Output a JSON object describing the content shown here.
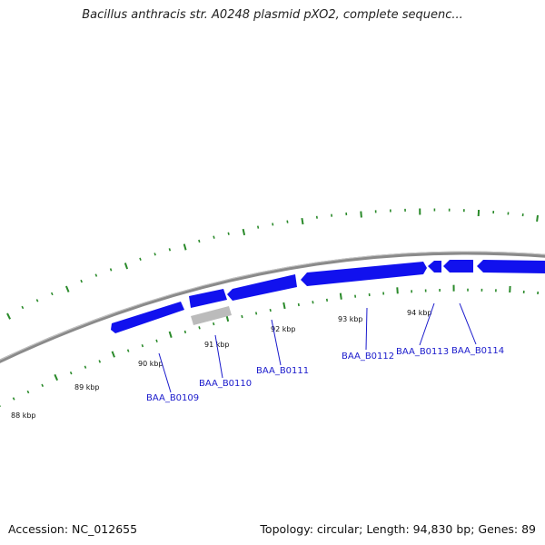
{
  "title": "Bacillus anthracis str. A0248 plasmid pXO2, complete sequenc...",
  "accession": "Accession: NC_012655",
  "summary": "Topology: circular; Length: 94,830 bp; Genes: 89",
  "colors": {
    "backbone": "#888888",
    "gene_forward": "#1111ee",
    "gene_other": "#bbbbbb",
    "ticks": "#2a8a2a",
    "gene_label": "#1a1acc"
  },
  "scale_labels": [
    "88 kbp",
    "89 kbp",
    "90 kbp",
    "91 kbp",
    "92 kbp",
    "93 kbp",
    "94 kbp"
  ],
  "genes": [
    "BAA_B0109",
    "BAA_B0110",
    "BAA_B0111",
    "BAA_B0112",
    "BAA_B0113",
    "BAA_B0114"
  ]
}
